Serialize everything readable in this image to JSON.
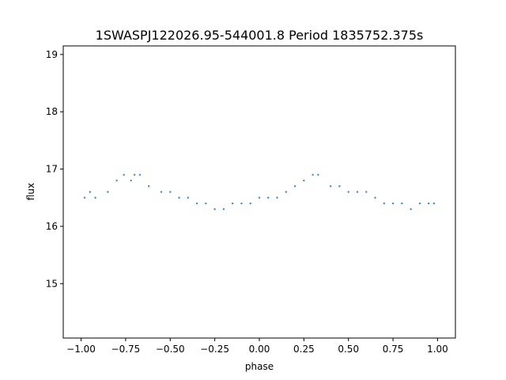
{
  "chart_data": {
    "type": "scatter",
    "title": "1SWASPJ122026.95-544001.8 Period 1835752.375s",
    "xlabel": "phase",
    "ylabel": "flux",
    "xlim": [
      -1.1,
      1.1
    ],
    "ylim": [
      14.05,
      19.15
    ],
    "xticks": [
      -1.0,
      -0.75,
      -0.5,
      -0.25,
      0.0,
      0.25,
      0.5,
      0.75,
      1.0
    ],
    "xtick_labels": [
      "−1.00",
      "−0.75",
      "−0.50",
      "−0.25",
      "0.00",
      "0.25",
      "0.50",
      "0.75",
      "1.00"
    ],
    "yticks": [
      15,
      16,
      17,
      18,
      19
    ],
    "ytick_labels": [
      "15",
      "16",
      "17",
      "18",
      "19"
    ],
    "grid": false,
    "marker_color": "#1f77b4",
    "series": [
      {
        "x": [
          -0.98,
          -0.95,
          -0.92,
          -0.85,
          -0.8,
          -0.76,
          -0.72,
          -0.7,
          -0.67,
          -0.62,
          -0.55,
          -0.5,
          -0.45,
          -0.4,
          -0.35,
          -0.3,
          -0.25,
          -0.2,
          -0.15,
          -0.1,
          -0.05,
          0.0,
          0.05,
          0.1,
          0.15,
          0.2,
          0.25,
          0.3,
          0.33,
          0.4,
          0.45,
          0.5,
          0.55,
          0.6,
          0.65,
          0.7,
          0.75,
          0.8,
          0.85,
          0.9,
          0.95,
          0.98
        ],
        "y": [
          16.5,
          16.6,
          16.5,
          16.6,
          16.8,
          16.9,
          16.8,
          16.9,
          16.9,
          16.7,
          16.6,
          16.6,
          16.5,
          16.5,
          16.4,
          16.4,
          16.3,
          16.3,
          16.4,
          16.4,
          16.4,
          16.5,
          16.5,
          16.5,
          16.6,
          16.7,
          16.8,
          16.9,
          16.9,
          16.7,
          16.7,
          16.6,
          16.6,
          16.6,
          16.5,
          16.4,
          16.4,
          16.4,
          16.3,
          16.4,
          16.4,
          16.4
        ]
      }
    ]
  }
}
